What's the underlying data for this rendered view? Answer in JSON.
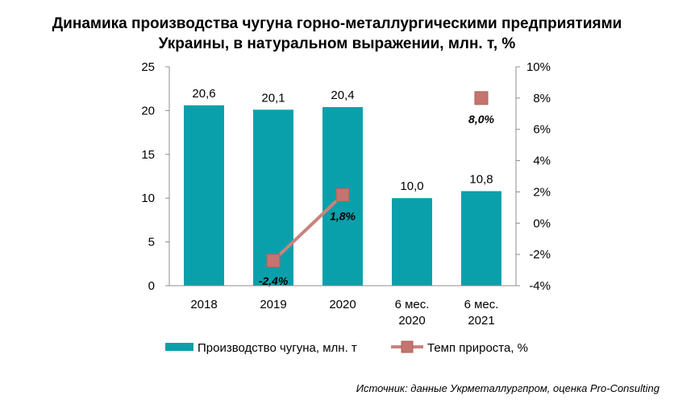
{
  "chart_data": {
    "type": "bar",
    "title_lines": [
      "Динамика производства чугуна горно-металлургическими предприятиями",
      "Украины, в натуральном выражении, млн. т, %"
    ],
    "categories": [
      [
        "2018"
      ],
      [
        "2019"
      ],
      [
        "2020"
      ],
      [
        "6 мес.",
        "2020"
      ],
      [
        "6 мес.",
        "2021"
      ]
    ],
    "series": [
      {
        "name": "Производство  чугуна, млн.  т",
        "type": "bar",
        "axis": "left",
        "color": "#0aa0ab",
        "values": [
          20.6,
          20.1,
          20.4,
          10.0,
          10.8
        ],
        "labels": [
          "20,6",
          "20,1",
          "20,4",
          "10,0",
          "10,8"
        ]
      },
      {
        "name": "Темп  прироста,  %",
        "type": "line",
        "axis": "right",
        "color": "#c9837c",
        "values": [
          null,
          -2.4,
          1.8,
          null,
          8.0
        ],
        "labels": [
          null,
          "-2,4%",
          "1,8%",
          null,
          "8,0%"
        ],
        "line_segments": [
          [
            1,
            2
          ]
        ]
      }
    ],
    "y_left": {
      "lim": [
        0,
        25
      ],
      "ticks": [
        0,
        5,
        10,
        15,
        20,
        25
      ],
      "tick_labels": [
        "0",
        "5",
        "10",
        "15",
        "20",
        "25"
      ]
    },
    "y_right": {
      "lim": [
        -4,
        10
      ],
      "ticks": [
        -4,
        -2,
        0,
        2,
        4,
        6,
        8,
        10
      ],
      "tick_labels": [
        "-4%",
        "-2%",
        "0%",
        "2%",
        "4%",
        "6%",
        "8%",
        "10%"
      ]
    },
    "grid": false,
    "legend_position": "bottom",
    "source": "Источник: данные Укрметаллургпром, оценка Pro-Consulting"
  }
}
